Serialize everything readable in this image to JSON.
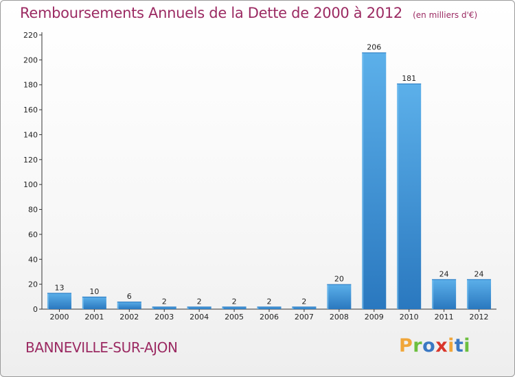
{
  "header": {
    "title": "Remboursements Annuels de la Dette de 2000 à 2012",
    "subtitle": "(en milliers d'€)"
  },
  "footer": {
    "commune": "BANNEVILLE-SUR-AJON",
    "logo": "Proxiti",
    "logo_colors": [
      "#f0a63a",
      "#6cbf3f",
      "#3a78c3",
      "#d9352b",
      "#f0a63a",
      "#3a78c3",
      "#6cbf3f"
    ]
  },
  "chart_data": {
    "type": "bar",
    "categories": [
      "2000",
      "2001",
      "2002",
      "2003",
      "2004",
      "2005",
      "2006",
      "2007",
      "2008",
      "2009",
      "2010",
      "2011",
      "2012"
    ],
    "values": [
      13,
      10,
      6,
      2,
      2,
      2,
      2,
      2,
      20,
      206,
      181,
      24,
      24
    ],
    "value_labels": [
      "13",
      "10",
      "6",
      "2",
      "2",
      "2",
      "2",
      "2",
      "20",
      "206",
      "181",
      "24",
      "24"
    ],
    "yticks": [
      0,
      20,
      40,
      60,
      80,
      100,
      120,
      140,
      160,
      180,
      200,
      220
    ],
    "ylim": [
      0,
      220
    ],
    "grid": false,
    "bar_color": "#4a9fdf",
    "bar_color_dark": "#2a78bf"
  }
}
